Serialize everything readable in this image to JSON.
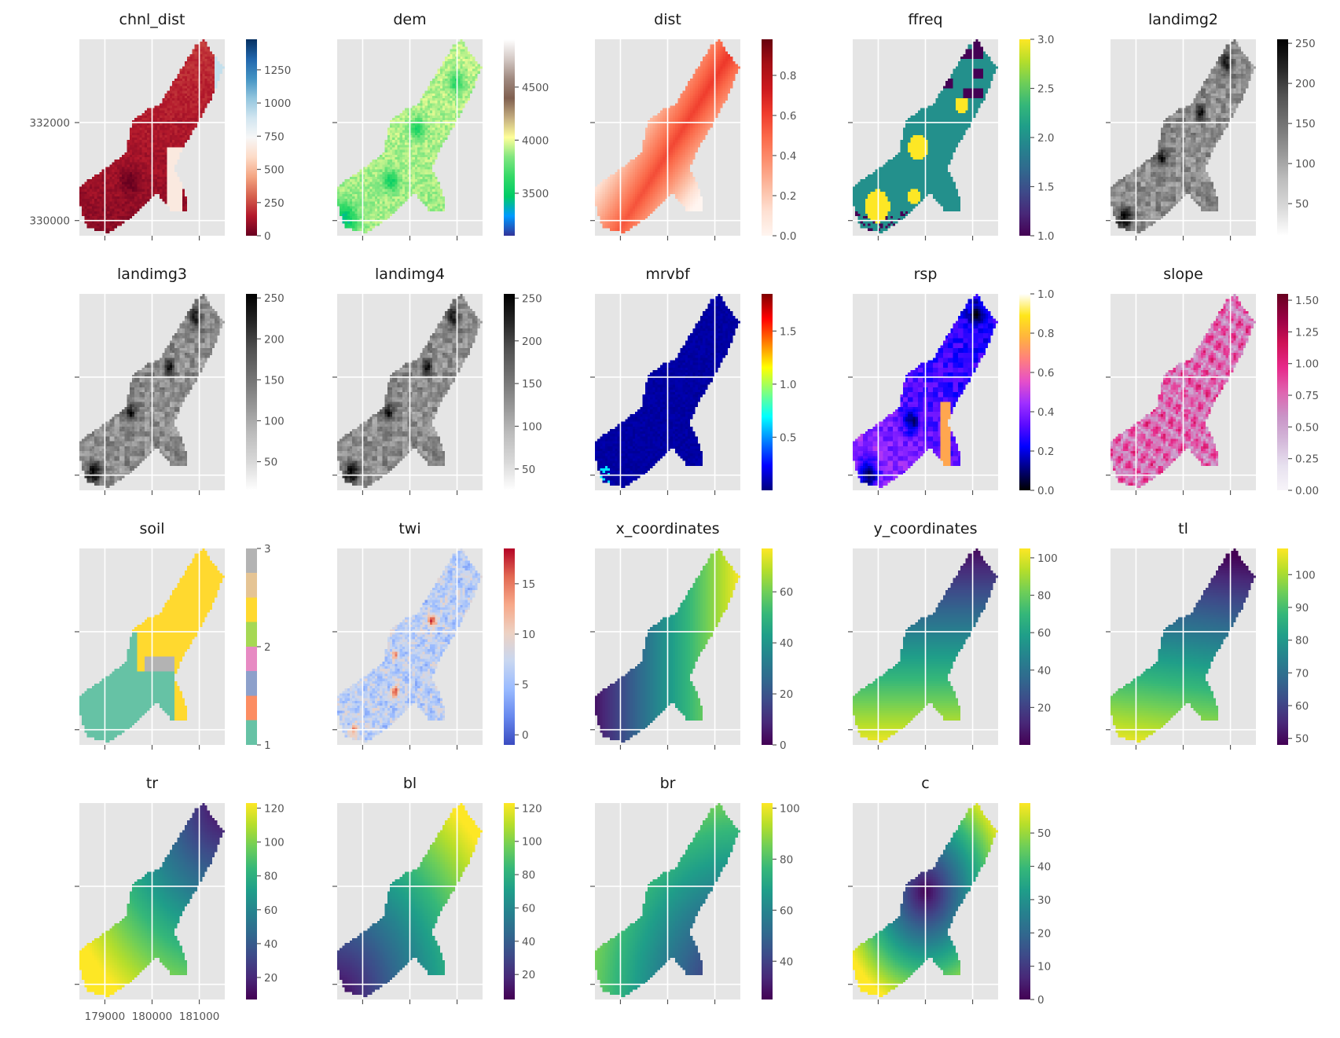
{
  "chart_data": {
    "type": "heatmap",
    "layout": "4x5 grid of raster maps sharing x and y axes",
    "grid": true,
    "shared_axes": {
      "x_ticks": [
        179000,
        180000,
        181000
      ],
      "x_tick_labels": [
        "179000",
        "180000",
        "181000"
      ],
      "y_ticks": [
        330000,
        332000
      ],
      "y_tick_labels": [
        "330000",
        "332000"
      ],
      "xlim": [
        178460,
        181540
      ],
      "ylim": [
        329690,
        333700
      ]
    },
    "panels": [
      {
        "title": "chnl_dist",
        "cmap": "RdBu",
        "vmin": 0,
        "vmax": 1480,
        "ticks": [
          0,
          250,
          500,
          750,
          1000,
          1250
        ],
        "tick_labels": [
          "0",
          "250",
          "500",
          "750",
          "1000",
          "1250"
        ],
        "field": "chnl"
      },
      {
        "title": "dem",
        "cmap": "terrain",
        "vmin": 3100,
        "vmax": 4950,
        "ticks": [
          3500,
          4000,
          4500
        ],
        "tick_labels": [
          "3500",
          "4000",
          "4500"
        ],
        "field": "dem"
      },
      {
        "title": "dist",
        "cmap": "Reds",
        "vmin": 0,
        "vmax": 0.98,
        "ticks": [
          0.0,
          0.2,
          0.4,
          0.6,
          0.8
        ],
        "tick_labels": [
          "0.0",
          "0.2",
          "0.4",
          "0.6",
          "0.8"
        ],
        "field": "dist"
      },
      {
        "title": "ffreq",
        "cmap": "viridis",
        "vmin": 1,
        "vmax": 3,
        "ticks": [
          1.0,
          1.5,
          2.0,
          2.5,
          3.0
        ],
        "tick_labels": [
          "1.0",
          "1.5",
          "2.0",
          "2.5",
          "3.0"
        ],
        "field": "ffreq"
      },
      {
        "title": "landimg2",
        "cmap": "Greys",
        "vmin": 10,
        "vmax": 255,
        "ticks": [
          50,
          100,
          150,
          200,
          250
        ],
        "tick_labels": [
          "50",
          "100",
          "150",
          "200",
          "250"
        ],
        "field": "noise"
      },
      {
        "title": "landimg3",
        "cmap": "Greys",
        "vmin": 15,
        "vmax": 255,
        "ticks": [
          50,
          100,
          150,
          200,
          250
        ],
        "tick_labels": [
          "50",
          "100",
          "150",
          "200",
          "250"
        ],
        "field": "noise"
      },
      {
        "title": "landimg4",
        "cmap": "Greys",
        "vmin": 25,
        "vmax": 255,
        "ticks": [
          50,
          100,
          150,
          200,
          250
        ],
        "tick_labels": [
          "50",
          "100",
          "150",
          "200",
          "250"
        ],
        "field": "noise"
      },
      {
        "title": "mrvbf",
        "cmap": "jet",
        "vmin": 0,
        "vmax": 1.85,
        "ticks": [
          0.5,
          1.0,
          1.5
        ],
        "tick_labels": [
          "0.5",
          "1.0",
          "1.5"
        ],
        "field": "mrvbf"
      },
      {
        "title": "rsp",
        "cmap": "gnuplot2",
        "vmin": 0,
        "vmax": 1,
        "ticks": [
          0.0,
          0.2,
          0.4,
          0.6,
          0.8,
          1.0
        ],
        "tick_labels": [
          "0.0",
          "0.2",
          "0.4",
          "0.6",
          "0.8",
          "1.0"
        ],
        "field": "rsp"
      },
      {
        "title": "slope",
        "cmap": "PuRd",
        "vmin": 0,
        "vmax": 1.55,
        "ticks": [
          0.0,
          0.25,
          0.5,
          0.75,
          1.0,
          1.25,
          1.5
        ],
        "tick_labels": [
          "0.00",
          "0.25",
          "0.50",
          "0.75",
          "1.00",
          "1.25",
          "1.50"
        ],
        "field": "slope"
      },
      {
        "title": "soil",
        "cmap": "Set2",
        "vmin": 1,
        "vmax": 3,
        "ticks": [
          1,
          2,
          3
        ],
        "tick_labels": [
          "1",
          "2",
          "3"
        ],
        "field": "soil"
      },
      {
        "title": "twi",
        "cmap": "coolwarm",
        "vmin": -1,
        "vmax": 18.5,
        "ticks": [
          0,
          5,
          10,
          15
        ],
        "tick_labels": [
          "0",
          "5",
          "10",
          "15"
        ],
        "field": "twi"
      },
      {
        "title": "x_coordinates",
        "cmap": "viridis",
        "vmin": 0,
        "vmax": 77,
        "ticks": [
          0,
          20,
          40,
          60
        ],
        "tick_labels": [
          "0",
          "20",
          "40",
          "60"
        ],
        "field": "x"
      },
      {
        "title": "y_coordinates",
        "cmap": "viridis",
        "vmin": 0,
        "vmax": 105,
        "ticks": [
          20,
          40,
          60,
          80,
          100
        ],
        "tick_labels": [
          "20",
          "40",
          "60",
          "80",
          "100"
        ],
        "field": "y"
      },
      {
        "title": "tl",
        "cmap": "viridis",
        "vmin": 48,
        "vmax": 108,
        "ticks": [
          50,
          60,
          70,
          80,
          90,
          100
        ],
        "tick_labels": [
          "50",
          "60",
          "70",
          "80",
          "90",
          "100"
        ],
        "field": "tl"
      },
      {
        "title": "tr",
        "cmap": "viridis",
        "vmin": 7,
        "vmax": 123,
        "ticks": [
          20,
          40,
          60,
          80,
          100,
          120
        ],
        "tick_labels": [
          "20",
          "40",
          "60",
          "80",
          "100",
          "120"
        ],
        "field": "tr"
      },
      {
        "title": "bl",
        "cmap": "viridis",
        "vmin": 5,
        "vmax": 123,
        "ticks": [
          20,
          40,
          60,
          80,
          100,
          120
        ],
        "tick_labels": [
          "20",
          "40",
          "60",
          "80",
          "100",
          "120"
        ],
        "field": "bl"
      },
      {
        "title": "br",
        "cmap": "viridis",
        "vmin": 25,
        "vmax": 102,
        "ticks": [
          40,
          60,
          80,
          100
        ],
        "tick_labels": [
          "40",
          "60",
          "80",
          "100"
        ],
        "field": "br"
      },
      {
        "title": "c",
        "cmap": "viridis",
        "vmin": 0,
        "vmax": 59,
        "ticks": [
          0,
          10,
          20,
          30,
          40,
          50
        ],
        "tick_labels": [
          "0",
          "10",
          "20",
          "30",
          "40",
          "50"
        ],
        "field": "c"
      }
    ]
  }
}
